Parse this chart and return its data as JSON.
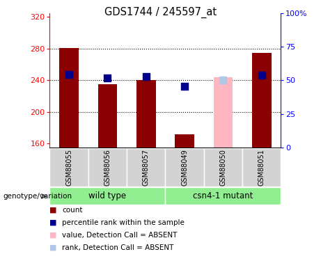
{
  "title": "GDS1744 / 245597_at",
  "samples": [
    "GSM88055",
    "GSM88056",
    "GSM88057",
    "GSM88049",
    "GSM88050",
    "GSM88051"
  ],
  "count_values": [
    281,
    235,
    240,
    172,
    null,
    275
  ],
  "count_absent": [
    null,
    null,
    null,
    null,
    244,
    null
  ],
  "rank_values": [
    247,
    243,
    245,
    232,
    null,
    246
  ],
  "rank_absent": [
    null,
    null,
    null,
    null,
    240,
    null
  ],
  "ylim_left": [
    155,
    325
  ],
  "ylim_right": [
    0,
    100
  ],
  "yticks_left": [
    160,
    200,
    240,
    280,
    320
  ],
  "yticks_right": [
    0,
    25,
    50,
    75,
    100
  ],
  "bar_color_present": "#8B0000",
  "bar_color_absent": "#FFB6C1",
  "rank_color_present": "#00008B",
  "rank_color_absent": "#B0C8E8",
  "grid_color": "#000000",
  "bar_width": 0.5,
  "rank_marker_size": 55,
  "wt_label": "wild type",
  "mut_label": "csn4-1 mutant",
  "group_bg": "#90EE90",
  "sample_bg": "#D3D3D3",
  "legend_items": [
    [
      "#8B0000",
      "count"
    ],
    [
      "#00008B",
      "percentile rank within the sample"
    ],
    [
      "#FFB6C1",
      "value, Detection Call = ABSENT"
    ],
    [
      "#B0C8E8",
      "rank, Detection Call = ABSENT"
    ]
  ],
  "genotype_label": "genotype/variation"
}
